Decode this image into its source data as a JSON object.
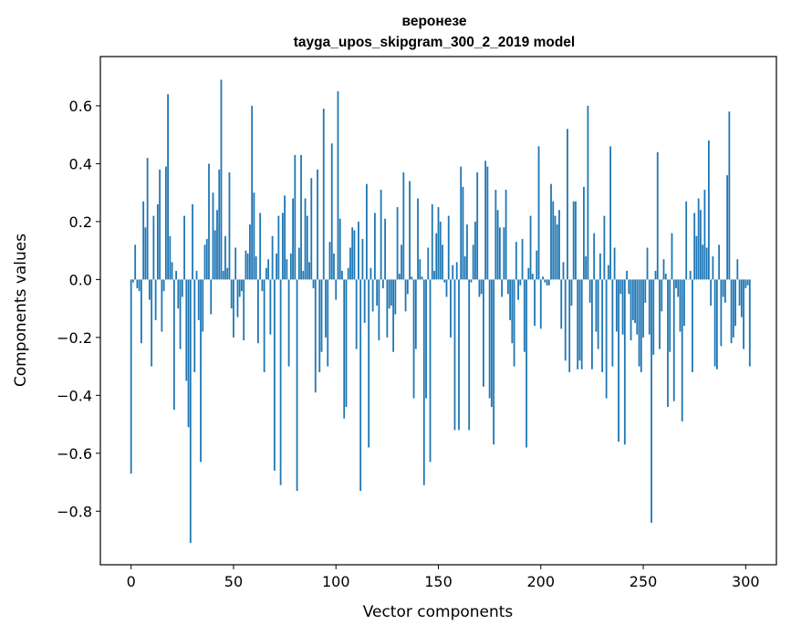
{
  "chart_data": {
    "type": "bar",
    "title": "веронезе",
    "subtitle": "tayga_upos_skipgram_300_2_2019 model",
    "xlabel": "Vector components",
    "ylabel": "Components values",
    "xlim": [
      -15,
      315
    ],
    "ylim": [
      -0.985,
      0.77
    ],
    "x_ticks": [
      0,
      50,
      100,
      150,
      200,
      250,
      300
    ],
    "y_ticks": [
      -0.8,
      -0.6,
      -0.4,
      -0.2,
      0.0,
      0.2,
      0.4,
      0.6
    ],
    "y_tick_labels": [
      "−0.8",
      "−0.6",
      "−0.4",
      "−0.2",
      "0.0",
      "0.2",
      "0.4",
      "0.6"
    ],
    "bar_color": "#1f77b4",
    "values": [
      -0.67,
      -0.01,
      0.12,
      -0.03,
      -0.04,
      -0.22,
      0.27,
      0.18,
      0.42,
      -0.07,
      -0.3,
      0.22,
      -0.14,
      0.26,
      0.38,
      -0.18,
      -0.04,
      0.39,
      0.64,
      0.15,
      0.06,
      -0.45,
      0.03,
      -0.1,
      -0.24,
      -0.06,
      0.22,
      -0.35,
      -0.51,
      -0.91,
      0.26,
      -0.32,
      0.03,
      -0.14,
      -0.63,
      -0.18,
      0.12,
      0.14,
      0.4,
      -0.12,
      0.3,
      0.17,
      0.24,
      0.38,
      0.69,
      0.03,
      0.15,
      0.04,
      0.37,
      -0.1,
      -0.2,
      0.11,
      -0.13,
      -0.06,
      -0.04,
      -0.21,
      0.1,
      0.09,
      0.19,
      0.6,
      0.3,
      0.08,
      -0.22,
      0.23,
      -0.04,
      -0.32,
      0.04,
      0.07,
      -0.19,
      0.15,
      -0.66,
      0.09,
      0.22,
      -0.71,
      0.23,
      0.29,
      0.07,
      -0.3,
      0.09,
      0.28,
      0.43,
      -0.73,
      0.11,
      0.43,
      0.03,
      0.28,
      0.22,
      0.06,
      0.35,
      -0.03,
      -0.39,
      0.38,
      -0.32,
      -0.25,
      0.59,
      -0.2,
      -0.3,
      0.13,
      0.47,
      0.09,
      -0.07,
      0.65,
      0.21,
      0.03,
      -0.48,
      -0.44,
      0.04,
      0.11,
      0.18,
      0.17,
      -0.24,
      0.2,
      -0.73,
      0.14,
      -0.15,
      0.33,
      -0.58,
      0.04,
      -0.11,
      0.23,
      -0.09,
      -0.21,
      0.31,
      -0.03,
      0.21,
      -0.2,
      -0.1,
      -0.09,
      -0.25,
      -0.12,
      0.25,
      0.02,
      0.12,
      0.37,
      -0.11,
      -0.05,
      0.34,
      0.01,
      -0.41,
      -0.24,
      0.28,
      0.07,
      0.01,
      -0.71,
      -0.41,
      0.11,
      -0.63,
      0.26,
      0.03,
      0.16,
      0.25,
      0.2,
      0.12,
      -0.01,
      -0.06,
      0.22,
      -0.2,
      0.05,
      -0.52,
      0.06,
      -0.52,
      0.39,
      0.32,
      0.08,
      0.19,
      -0.52,
      -0.01,
      0.12,
      0.2,
      0.37,
      -0.06,
      -0.05,
      -0.37,
      0.41,
      0.39,
      -0.41,
      -0.44,
      -0.57,
      0.31,
      0.24,
      0.18,
      -0.06,
      0.18,
      0.31,
      -0.05,
      -0.14,
      -0.22,
      -0.3,
      0.13,
      -0.07,
      -0.02,
      0.14,
      -0.25,
      -0.58,
      0.04,
      0.22,
      0.02,
      -0.16,
      0.1,
      0.46,
      -0.17,
      0.01,
      -0.01,
      -0.02,
      -0.02,
      0.33,
      0.27,
      0.22,
      0.19,
      0.24,
      -0.17,
      0.06,
      -0.28,
      0.52,
      -0.32,
      -0.09,
      0.27,
      0.27,
      -0.31,
      -0.28,
      -0.31,
      0.32,
      0.08,
      0.6,
      -0.08,
      -0.31,
      0.16,
      -0.18,
      -0.24,
      0.09,
      -0.32,
      0.22,
      -0.41,
      0.05,
      0.46,
      -0.3,
      0.11,
      -0.18,
      -0.56,
      -0.05,
      -0.19,
      -0.57,
      0.03,
      -0.05,
      -0.21,
      -0.14,
      -0.15,
      -0.19,
      -0.3,
      -0.32,
      -0.2,
      -0.08,
      0.11,
      -0.19,
      -0.84,
      -0.26,
      0.03,
      0.44,
      -0.24,
      -0.11,
      0.07,
      0.02,
      -0.44,
      -0.25,
      0.16,
      -0.42,
      -0.03,
      -0.06,
      -0.18,
      -0.49,
      -0.16,
      0.27,
      0.0,
      0.03,
      -0.32,
      0.23,
      0.15,
      0.28,
      0.24,
      0.12,
      0.31,
      0.11,
      0.48,
      -0.09,
      0.08,
      -0.3,
      -0.31,
      0.12,
      -0.23,
      -0.06,
      -0.08,
      0.36,
      0.58,
      -0.22,
      -0.2,
      -0.16,
      0.07,
      -0.09,
      -0.13,
      -0.24,
      -0.03,
      -0.02,
      -0.3
    ]
  }
}
